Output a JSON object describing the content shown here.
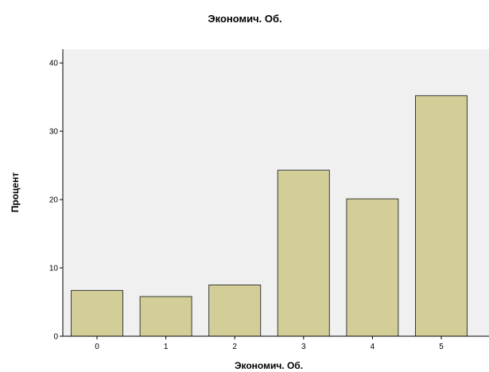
{
  "chart_data": {
    "type": "bar",
    "title": "Экономич. Об.",
    "xlabel": "Экономич. Об.",
    "ylabel": "Процент",
    "categories": [
      "0",
      "1",
      "2",
      "3",
      "4",
      "5"
    ],
    "values": [
      6.7,
      5.8,
      7.5,
      24.3,
      20.1,
      35.2
    ],
    "ylim": [
      0,
      42
    ],
    "yticks": [
      "0",
      "10",
      "20",
      "30",
      "40"
    ],
    "grid": false,
    "legend": "none",
    "colors": {
      "bar_fill": "#d3ce97",
      "bar_stroke": "#3a3a3a",
      "plot_background": "#f0f0f0",
      "axis": "#000000"
    }
  }
}
